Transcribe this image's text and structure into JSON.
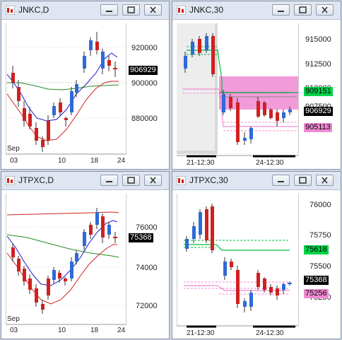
{
  "colors": {
    "price_badge_bg": "#000000",
    "price_badge_fg": "#ffffff",
    "green_badge": "#00d24a",
    "pink_badge": "#f08ad2",
    "up_candle": "#2e6ad6",
    "down_candle": "#d02020"
  },
  "windows": [
    {
      "id": "jnkc-d",
      "title": "JNKC,D",
      "y_ticks": [
        "920000",
        "900000",
        "880000"
      ],
      "x_labels": [
        "03",
        "10",
        "18",
        "24"
      ],
      "month_label": "Sep",
      "price_badge": "906929"
    },
    {
      "id": "jnkc-30",
      "title": "JNKC,30",
      "y_ticks": [
        "915000",
        "912500",
        "910000",
        "907500"
      ],
      "x_labels": [
        "21-12:30",
        "24-12:30"
      ],
      "price_badge": "906929",
      "green_badge": "909151",
      "pink_badge": "905113"
    },
    {
      "id": "jtpxc-d",
      "title": "JTPXC,D",
      "y_ticks": [
        "76000",
        "74000",
        "72000"
      ],
      "x_labels": [
        "03",
        "10",
        "18",
        "24"
      ],
      "month_label": "Sep",
      "price_badge": "75368"
    },
    {
      "id": "jtpxc-30",
      "title": "JTPXC,30",
      "y_ticks": [
        "76000",
        "75750",
        "75500",
        "75250"
      ],
      "x_labels": [
        "21-12:30",
        "24-12:30"
      ],
      "price_badge": "75368",
      "green_badge": "75618",
      "pink_badge": "75256"
    }
  ],
  "window_buttons": {
    "minimize": "minimize-icon",
    "maximize": "maximize-icon",
    "close": "close-icon"
  }
}
